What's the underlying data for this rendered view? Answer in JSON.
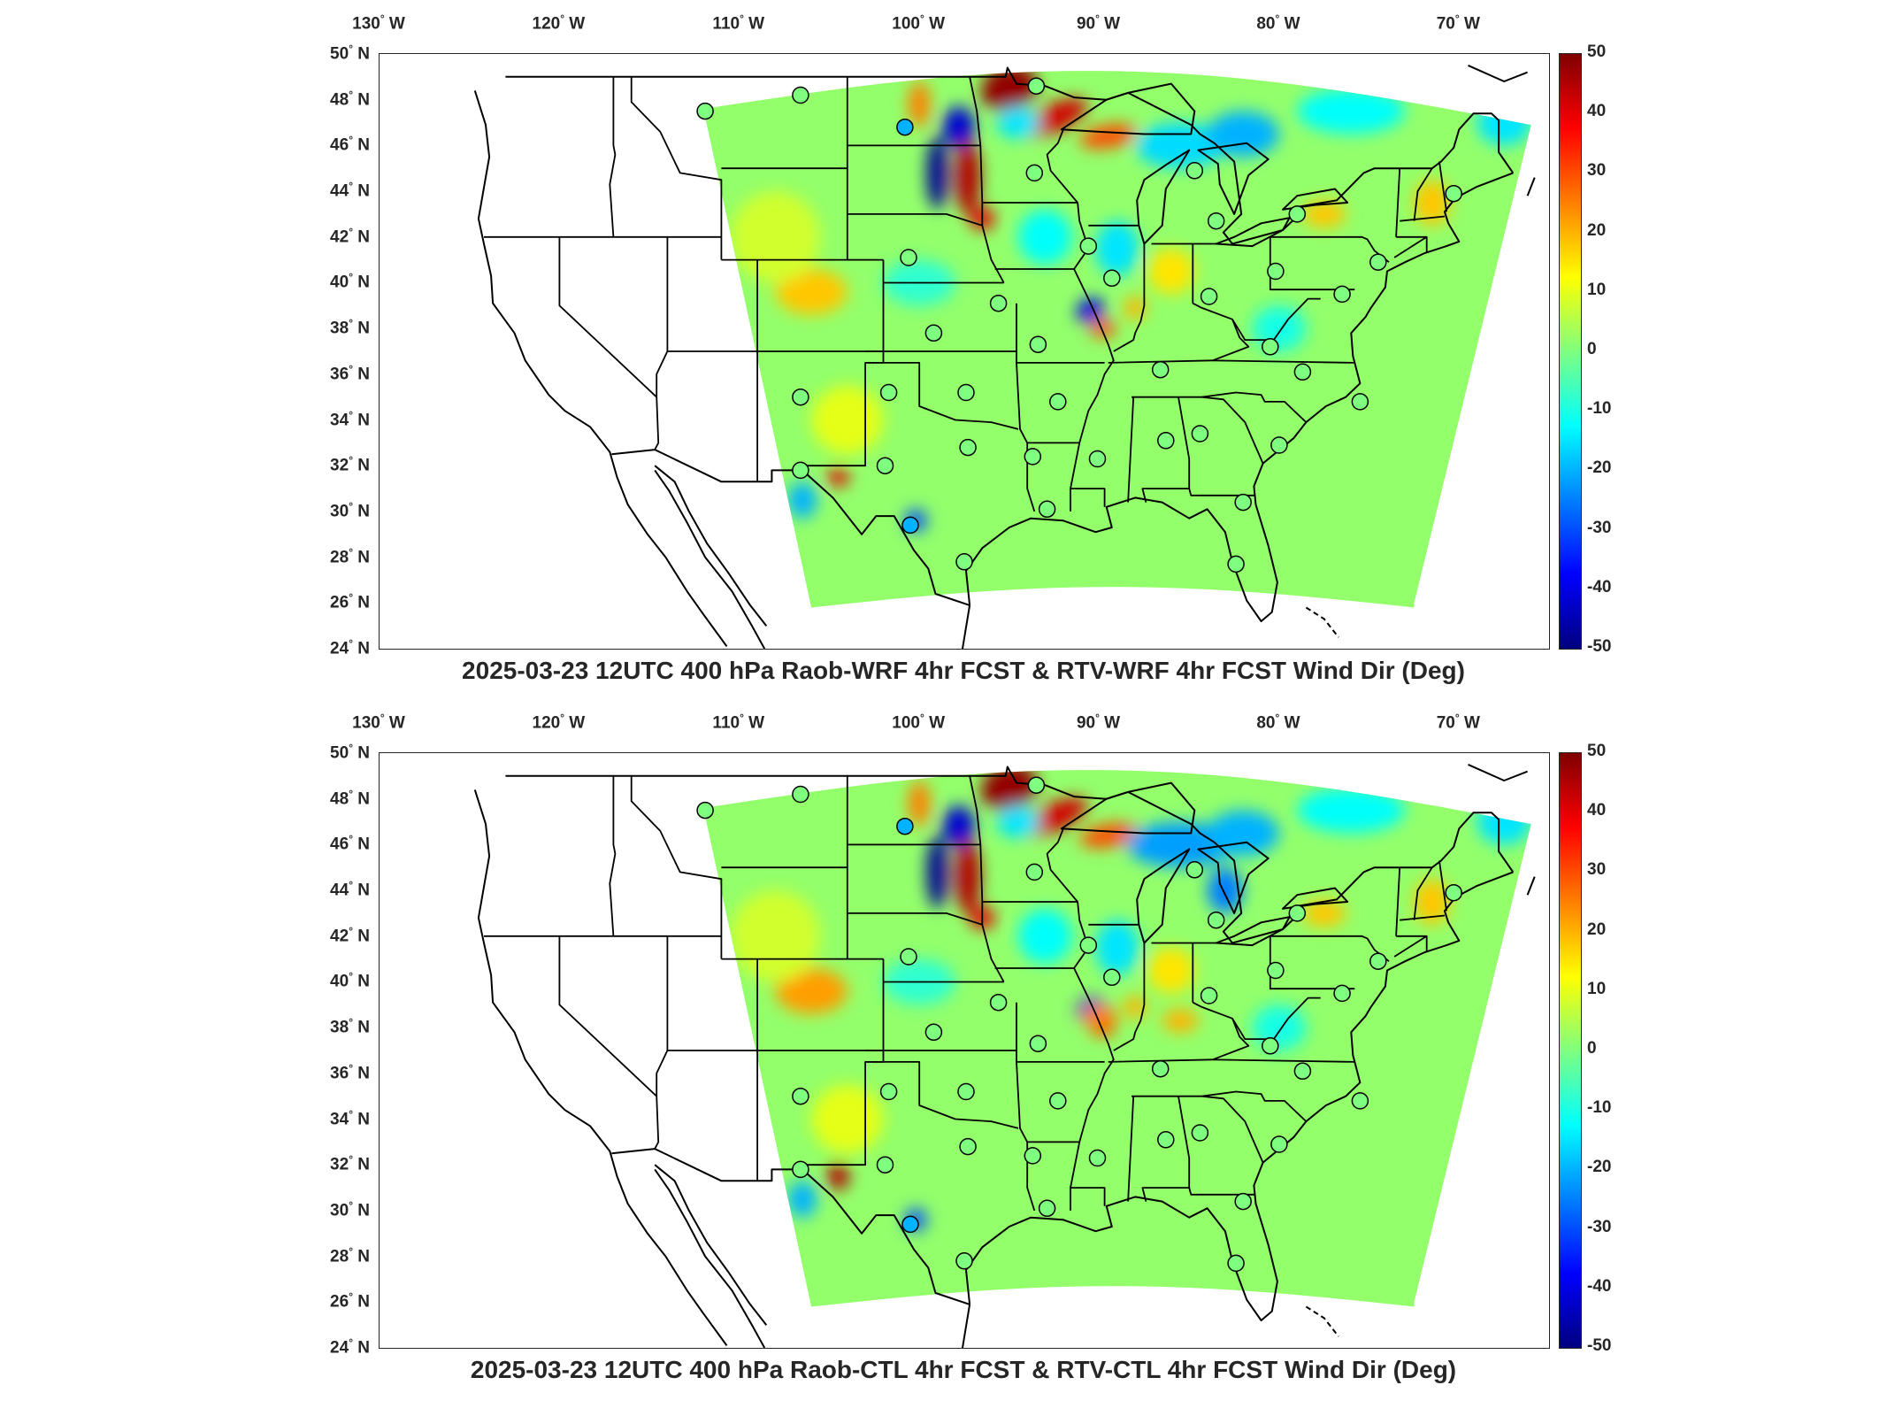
{
  "panels": [
    {
      "id": "top",
      "title": "2025-03-23 12UTC 400 hPa Raob-WRF 4hr FCST & RTV-WRF 4hr FCST Wind Dir (Deg)"
    },
    {
      "id": "bottom",
      "title": "2025-03-23 12UTC 400 hPa Raob-CTL 4hr FCST & RTV-CTL 4hr FCST Wind Dir (Deg)"
    }
  ],
  "axes": {
    "lon_ticks": [
      {
        "value": -130,
        "label": "130",
        "hemi": "W"
      },
      {
        "value": -120,
        "label": "120",
        "hemi": "W"
      },
      {
        "value": -110,
        "label": "110",
        "hemi": "W"
      },
      {
        "value": -100,
        "label": "100",
        "hemi": "W"
      },
      {
        "value": -90,
        "label": "90",
        "hemi": "W"
      },
      {
        "value": -80,
        "label": "80",
        "hemi": "W"
      },
      {
        "value": -70,
        "label": "70",
        "hemi": "W"
      }
    ],
    "lat_ticks": [
      {
        "value": 50,
        "label": "50",
        "hemi": "N"
      },
      {
        "value": 48,
        "label": "48",
        "hemi": "N"
      },
      {
        "value": 46,
        "label": "46",
        "hemi": "N"
      },
      {
        "value": 44,
        "label": "44",
        "hemi": "N"
      },
      {
        "value": 42,
        "label": "42",
        "hemi": "N"
      },
      {
        "value": 40,
        "label": "40",
        "hemi": "N"
      },
      {
        "value": 38,
        "label": "38",
        "hemi": "N"
      },
      {
        "value": 36,
        "label": "36",
        "hemi": "N"
      },
      {
        "value": 34,
        "label": "34",
        "hemi": "N"
      },
      {
        "value": 32,
        "label": "32",
        "hemi": "N"
      },
      {
        "value": 30,
        "label": "30",
        "hemi": "N"
      },
      {
        "value": 28,
        "label": "28",
        "hemi": "N"
      },
      {
        "value": 26,
        "label": "26",
        "hemi": "N"
      },
      {
        "value": 24,
        "label": "24",
        "hemi": "N"
      }
    ],
    "lon_range": [
      -130,
      -65
    ],
    "lat_range": [
      24,
      50
    ]
  },
  "colorbar": {
    "range": [
      -50,
      50
    ],
    "ticks": [
      "50",
      "40",
      "30",
      "20",
      "10",
      "0",
      "-10",
      "-20",
      "-30",
      "-40",
      "-50"
    ],
    "colors": [
      "#00007f",
      "#0000ff",
      "#007fff",
      "#00ffff",
      "#7fff7f",
      "#ffff00",
      "#ff7f00",
      "#ff0000",
      "#7f0000"
    ]
  },
  "stations": [
    {
      "lon": -111.9,
      "lat": 47.5,
      "v": 0
    },
    {
      "lon": -106.6,
      "lat": 48.2,
      "v": 0
    },
    {
      "lon": -100.8,
      "lat": 46.8,
      "v": -20
    },
    {
      "lon": -93.5,
      "lat": 48.6,
      "v": 0
    },
    {
      "lon": -93.6,
      "lat": 44.8,
      "v": 0
    },
    {
      "lon": -84.7,
      "lat": 44.9,
      "v": 0
    },
    {
      "lon": -83.5,
      "lat": 42.7,
      "v": 0
    },
    {
      "lon": -79.0,
      "lat": 43.0,
      "v": 0
    },
    {
      "lon": -70.3,
      "lat": 43.9,
      "v": 0
    },
    {
      "lon": -100.6,
      "lat": 41.1,
      "v": 0
    },
    {
      "lon": -90.6,
      "lat": 41.6,
      "v": 0
    },
    {
      "lon": -89.3,
      "lat": 40.2,
      "v": 0
    },
    {
      "lon": -80.2,
      "lat": 40.5,
      "v": 0
    },
    {
      "lon": -83.9,
      "lat": 39.4,
      "v": 0
    },
    {
      "lon": -76.5,
      "lat": 39.5,
      "v": 0
    },
    {
      "lon": -74.5,
      "lat": 40.9,
      "v": 0
    },
    {
      "lon": -95.6,
      "lat": 39.1,
      "v": 0
    },
    {
      "lon": -99.2,
      "lat": 37.8,
      "v": 0
    },
    {
      "lon": -93.4,
      "lat": 37.3,
      "v": 0
    },
    {
      "lon": -80.5,
      "lat": 37.2,
      "v": 0
    },
    {
      "lon": -86.6,
      "lat": 36.2,
      "v": 0
    },
    {
      "lon": -78.7,
      "lat": 36.1,
      "v": 0
    },
    {
      "lon": -75.5,
      "lat": 34.8,
      "v": 0
    },
    {
      "lon": -106.6,
      "lat": 35.0,
      "v": 0
    },
    {
      "lon": -101.7,
      "lat": 35.2,
      "v": 0
    },
    {
      "lon": -97.4,
      "lat": 35.2,
      "v": 0
    },
    {
      "lon": -92.3,
      "lat": 34.8,
      "v": 0
    },
    {
      "lon": -101.9,
      "lat": 32.0,
      "v": 0
    },
    {
      "lon": -97.3,
      "lat": 32.8,
      "v": 0
    },
    {
      "lon": -93.7,
      "lat": 32.4,
      "v": 0
    },
    {
      "lon": -90.1,
      "lat": 32.3,
      "v": 0
    },
    {
      "lon": -86.3,
      "lat": 33.1,
      "v": 0
    },
    {
      "lon": -84.4,
      "lat": 33.4,
      "v": 0
    },
    {
      "lon": -80.0,
      "lat": 32.9,
      "v": 0
    },
    {
      "lon": -106.6,
      "lat": 31.8,
      "v": 0
    },
    {
      "lon": -100.5,
      "lat": 29.4,
      "v": -20
    },
    {
      "lon": -97.5,
      "lat": 27.8,
      "v": 0
    },
    {
      "lon": -92.9,
      "lat": 30.1,
      "v": 0
    },
    {
      "lon": -82.0,
      "lat": 30.4,
      "v": 0
    },
    {
      "lon": -82.4,
      "lat": 27.7,
      "v": 0
    }
  ]
}
